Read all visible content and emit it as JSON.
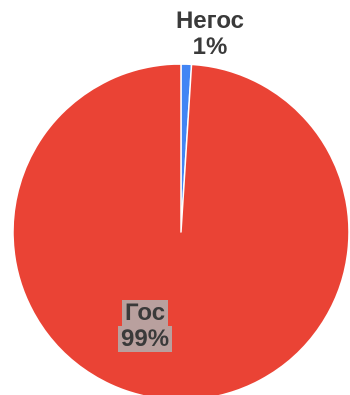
{
  "chart_data": {
    "type": "pie",
    "title": "",
    "slices": [
      {
        "label": "Негос",
        "value": 1,
        "value_label": "1%",
        "color": "#4285f4"
      },
      {
        "label": "Гос",
        "value": 99,
        "value_label": "99%",
        "color": "#ea4335"
      }
    ],
    "legend": "none"
  }
}
